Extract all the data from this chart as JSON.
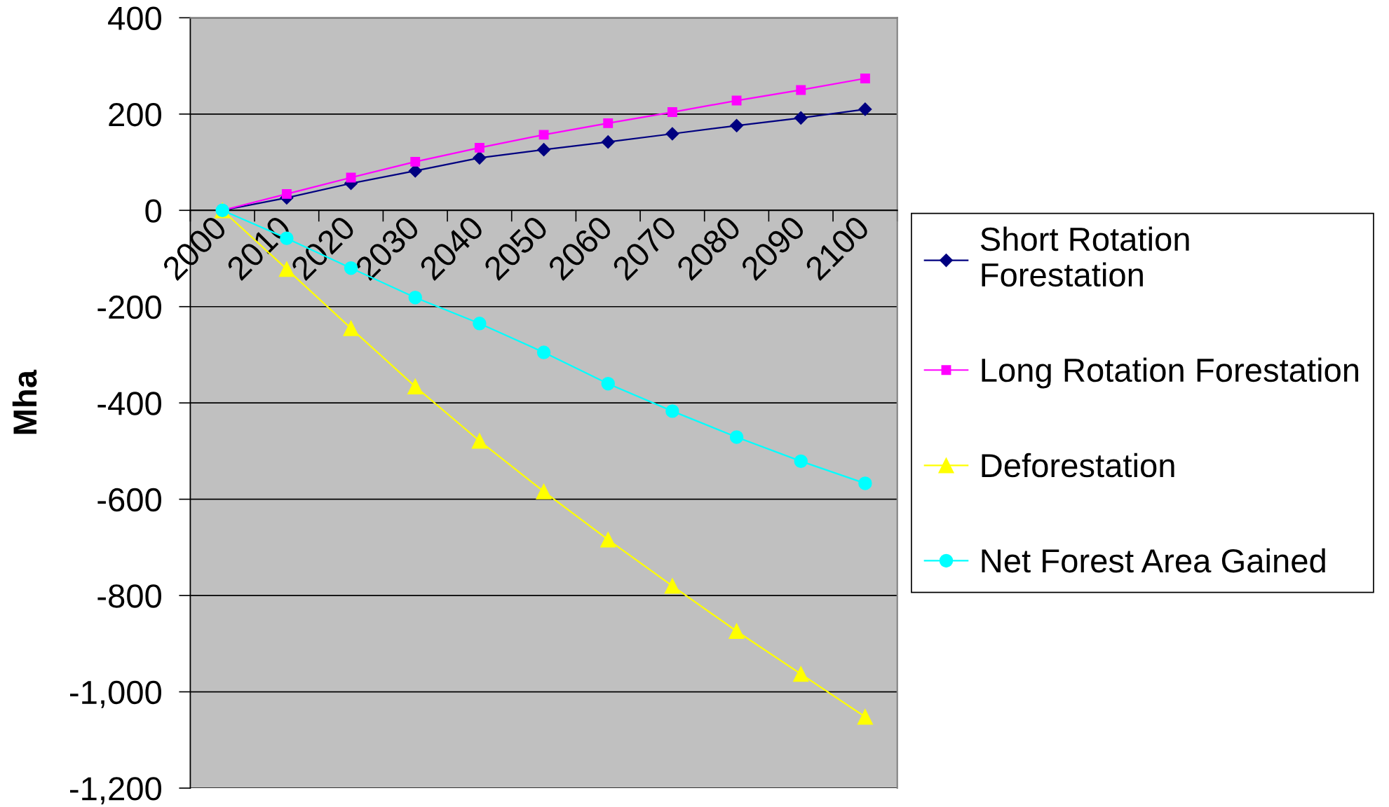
{
  "chart_data": {
    "type": "line",
    "ylabel": "Mha",
    "categories": [
      "2000",
      "2010",
      "2020",
      "2030",
      "2040",
      "2050",
      "2060",
      "2070",
      "2080",
      "2090",
      "2100"
    ],
    "series": [
      {
        "name": "Short Rotation Forestation",
        "color": "#000080",
        "marker": "diamond",
        "values": [
          0,
          26,
          56,
          82,
          109,
          126,
          142,
          159,
          176,
          192,
          210
        ]
      },
      {
        "name": "Long Rotation Forestation",
        "color": "#ff00ff",
        "marker": "square",
        "values": [
          0,
          34,
          68,
          101,
          130,
          157,
          181,
          204,
          228,
          250,
          274
        ]
      },
      {
        "name": "Deforestation",
        "color": "#ffff00",
        "marker": "triangle",
        "values": [
          0,
          -122,
          -245,
          -366,
          -479,
          -584,
          -684,
          -780,
          -874,
          -963,
          -1052
        ]
      },
      {
        "name": "Net Forest Area Gained",
        "color": "#00ffff",
        "marker": "circle",
        "values": [
          0,
          -58,
          -120,
          -181,
          -235,
          -295,
          -360,
          -417,
          -471,
          -521,
          -567
        ]
      }
    ],
    "ylim": [
      -1200,
      400
    ],
    "yticks": [
      {
        "value": -1200,
        "label": "-1,200"
      },
      {
        "value": -1000,
        "label": "-1,000"
      },
      -800,
      -600,
      -400,
      -200,
      0,
      200,
      400
    ],
    "grid": "y",
    "legend": "right",
    "line_style": "solid"
  }
}
